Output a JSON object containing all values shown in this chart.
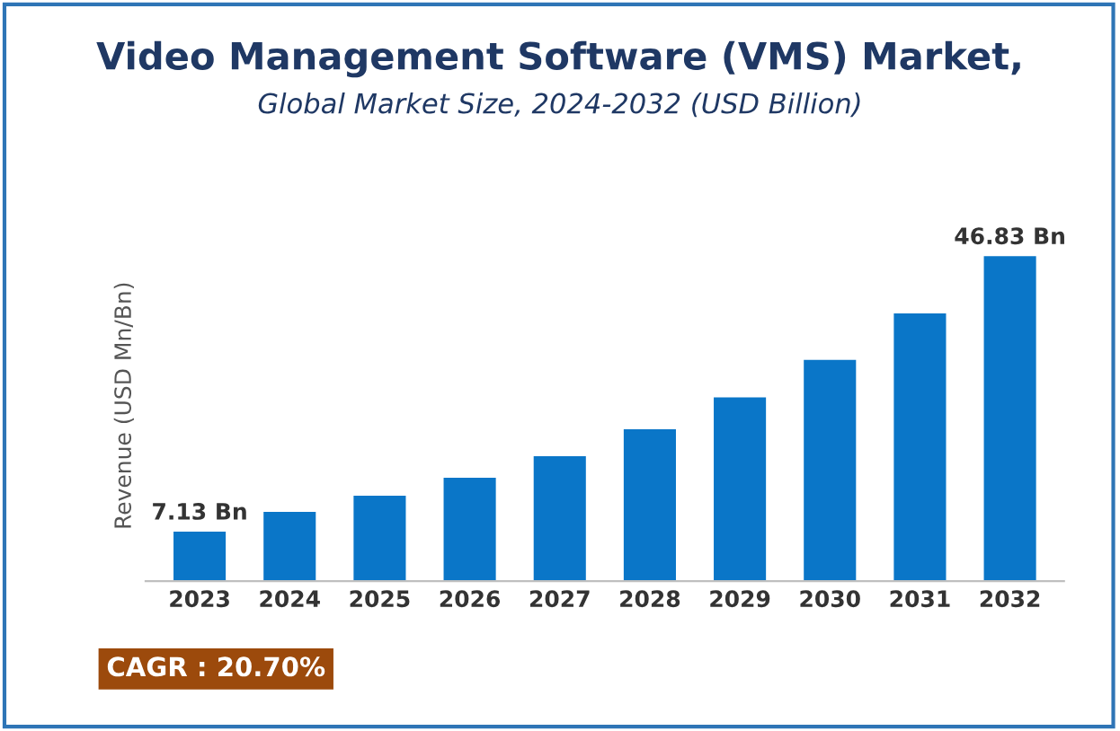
{
  "chart_data": {
    "type": "bar",
    "title": "Video Management Software (VMS) Market,",
    "subtitle": "Global Market Size, 2024-2032 (USD Billion)",
    "ylabel": "Revenue (USD Mn/Bn)",
    "categories": [
      "2023",
      "2024",
      "2025",
      "2026",
      "2027",
      "2028",
      "2029",
      "2030",
      "2031",
      "2032"
    ],
    "values": [
      7.13,
      10.0,
      12.3,
      14.9,
      18.0,
      21.9,
      26.5,
      31.9,
      38.6,
      46.83
    ],
    "value_labels": [
      "7.13 Bn",
      null,
      null,
      null,
      null,
      null,
      null,
      null,
      null,
      "46.83 Bn"
    ],
    "color": "#0a76c8",
    "tick_labels": "x",
    "grid": false,
    "legend": false,
    "annotations": [
      "CAGR : 20.70%"
    ]
  }
}
